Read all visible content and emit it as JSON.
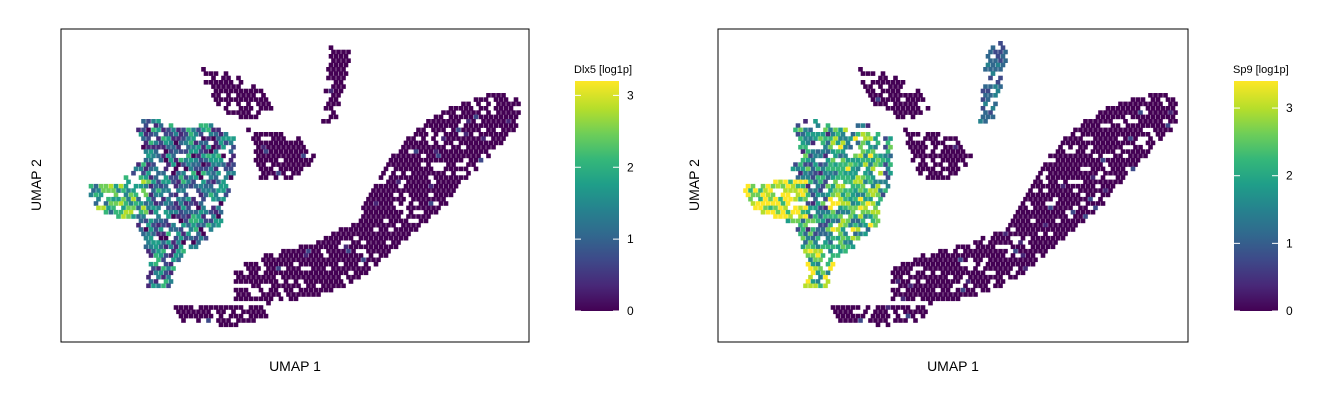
{
  "chart_data": [
    {
      "type": "scatter",
      "title": "",
      "xlabel": "UMAP 1",
      "ylabel": "UMAP 2",
      "grid": false,
      "colorbar": {
        "label": "Dlx5 [log1p]",
        "colormap": "viridis",
        "range": [
          0,
          3.2
        ],
        "ticks": [
          "0",
          "1",
          "2",
          "3"
        ]
      },
      "point_color_background": "#440154",
      "note_values": "hexbin embedding; higher expression concentrated in left-hand lobes"
    },
    {
      "type": "scatter",
      "title": "",
      "xlabel": "UMAP 1",
      "ylabel": "UMAP 2",
      "grid": false,
      "colorbar": {
        "label": "Sp9 [log1p]",
        "colormap": "viridis",
        "range": [
          0,
          3.4
        ],
        "ticks": [
          "0",
          "1",
          "2",
          "3"
        ]
      },
      "point_color_background": "#440154"
    }
  ],
  "colors": {
    "viridis": [
      "#440154",
      "#482878",
      "#3e4989",
      "#31688e",
      "#26828e",
      "#1f9e89",
      "#35b779",
      "#6ece58",
      "#b5de2b",
      "#fde725"
    ],
    "frame": "#000000"
  }
}
